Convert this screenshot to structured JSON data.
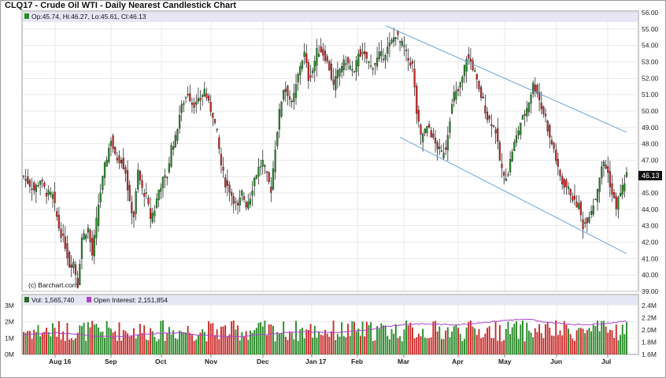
{
  "header": {
    "title": "CLQ17 - Crude Oil WTI - Daily Nearest Candlestick Chart"
  },
  "legend": {
    "ohlc": "Op:45.74, Hi:46.27, Lo:45.61, Cl:46.13",
    "vol": "Vol: 1,565,740",
    "oi": "Open Interest: 2,151,854"
  },
  "watermark": "(c) Barchart.com",
  "last_price": "46.13",
  "colors": {
    "up": "#2a8a2a",
    "down": "#cc2a2a",
    "oi": "#b040d0",
    "trend": "#5a9ad6",
    "grid": "#dcdcdc"
  },
  "chart_data": [
    {
      "type": "candlestick",
      "title": "CLQ17 - Crude Oil WTI - Daily Nearest Candlestick Chart",
      "ylim": [
        39,
        56
      ],
      "y_ticks": [
        "39.00",
        "40.00",
        "41.00",
        "42.00",
        "43.00",
        "44.00",
        "45.00",
        "46.00",
        "47.00",
        "48.00",
        "49.00",
        "50.00",
        "51.00",
        "52.00",
        "53.00",
        "54.00",
        "55.00",
        "56.00"
      ],
      "x_ticks": [
        "Aug 16",
        "Sep",
        "Oct",
        "Nov",
        "Dec",
        "Jan 17",
        "Feb",
        "Mar",
        "Apr",
        "May",
        "Jun",
        "Jul"
      ],
      "last": {
        "open": 45.74,
        "high": 46.27,
        "low": 45.61,
        "close": 46.13
      },
      "close_path": [
        [
          0,
          46.0
        ],
        [
          5,
          45.2
        ],
        [
          8,
          45.8
        ],
        [
          11,
          45.0
        ],
        [
          14,
          44.8
        ],
        [
          17,
          42.9
        ],
        [
          20,
          41.8
        ],
        [
          22,
          40.6
        ],
        [
          24,
          40.8
        ],
        [
          26,
          39.4
        ],
        [
          28,
          42.3
        ],
        [
          31,
          42.8
        ],
        [
          33,
          41.2
        ],
        [
          36,
          44.3
        ],
        [
          39,
          46.6
        ],
        [
          42,
          48.3
        ],
        [
          44,
          47.2
        ],
        [
          47,
          47.0
        ],
        [
          49,
          46.3
        ],
        [
          51,
          44.3
        ],
        [
          53,
          43.6
        ],
        [
          55,
          46.3
        ],
        [
          57,
          45.2
        ],
        [
          59,
          44.8
        ],
        [
          61,
          43.5
        ],
        [
          63,
          44.0
        ],
        [
          65,
          45.2
        ],
        [
          67,
          45.8
        ],
        [
          69,
          46.0
        ],
        [
          71,
          47.8
        ],
        [
          73,
          48.3
        ],
        [
          75,
          49.8
        ],
        [
          77,
          50.6
        ],
        [
          79,
          51.1
        ],
        [
          81,
          50.5
        ],
        [
          83,
          50.4
        ],
        [
          85,
          50.7
        ],
        [
          87,
          51.3
        ],
        [
          89,
          50.4
        ],
        [
          91,
          49.8
        ],
        [
          93,
          48.6
        ],
        [
          95,
          46.7
        ],
        [
          97,
          45.6
        ],
        [
          99,
          45.2
        ],
        [
          101,
          44.6
        ],
        [
          103,
          44.1
        ],
        [
          105,
          45.0
        ],
        [
          107,
          44.3
        ],
        [
          109,
          44.8
        ],
        [
          111,
          45.9
        ],
        [
          113,
          46.5
        ],
        [
          115,
          46.9
        ],
        [
          117,
          46.0
        ],
        [
          119,
          45.2
        ],
        [
          121,
          47.8
        ],
        [
          123,
          49.9
        ],
        [
          125,
          51.4
        ],
        [
          127,
          51.1
        ],
        [
          129,
          50.4
        ],
        [
          131,
          51.5
        ],
        [
          133,
          52.8
        ],
        [
          135,
          53.5
        ],
        [
          137,
          52.0
        ],
        [
          139,
          52.5
        ],
        [
          141,
          53.6
        ],
        [
          143,
          53.7
        ],
        [
          145,
          53.3
        ],
        [
          147,
          52.6
        ],
        [
          149,
          51.5
        ],
        [
          151,
          52.3
        ],
        [
          153,
          52.8
        ],
        [
          155,
          53.0
        ],
        [
          157,
          52.7
        ],
        [
          159,
          52.2
        ],
        [
          161,
          53.6
        ],
        [
          163,
          53.4
        ],
        [
          165,
          53.2
        ],
        [
          167,
          52.7
        ],
        [
          169,
          52.9
        ],
        [
          171,
          53.4
        ],
        [
          173,
          53.4
        ],
        [
          175,
          53.8
        ],
        [
          177,
          54.2
        ],
        [
          179,
          54.7
        ],
        [
          181,
          54.2
        ],
        [
          183,
          53.9
        ],
        [
          185,
          53.1
        ],
        [
          187,
          52.8
        ],
        [
          189,
          49.9
        ],
        [
          191,
          48.4
        ],
        [
          193,
          48.8
        ],
        [
          195,
          49.0
        ],
        [
          197,
          48.2
        ],
        [
          199,
          47.8
        ],
        [
          201,
          47.4
        ],
        [
          203,
          47.8
        ],
        [
          205,
          49.6
        ],
        [
          207,
          51.0
        ],
        [
          209,
          51.2
        ],
        [
          211,
          52.0
        ],
        [
          213,
          53.3
        ],
        [
          215,
          53.0
        ],
        [
          217,
          52.3
        ],
        [
          219,
          51.2
        ],
        [
          221,
          50.6
        ],
        [
          223,
          49.6
        ],
        [
          225,
          49.3
        ],
        [
          227,
          48.8
        ],
        [
          229,
          47.0
        ],
        [
          231,
          45.9
        ],
        [
          233,
          46.3
        ],
        [
          235,
          47.6
        ],
        [
          237,
          48.4
        ],
        [
          239,
          49.3
        ],
        [
          241,
          49.8
        ],
        [
          243,
          50.6
        ],
        [
          245,
          51.6
        ],
        [
          247,
          51.2
        ],
        [
          249,
          50.2
        ],
        [
          251,
          49.6
        ],
        [
          253,
          48.3
        ],
        [
          255,
          47.7
        ],
        [
          257,
          46.4
        ],
        [
          259,
          45.6
        ],
        [
          261,
          45.4
        ],
        [
          263,
          45.0
        ],
        [
          265,
          44.4
        ],
        [
          267,
          44.2
        ],
        [
          269,
          43.0
        ],
        [
          271,
          43.4
        ],
        [
          273,
          44.0
        ],
        [
          275,
          44.7
        ],
        [
          277,
          46.0
        ],
        [
          279,
          46.9
        ],
        [
          281,
          46.2
        ],
        [
          283,
          44.9
        ],
        [
          285,
          44.2
        ],
        [
          287,
          45.0
        ],
        [
          289,
          45.7
        ],
        [
          290,
          46.13
        ]
      ],
      "trend_lines": [
        {
          "from": [
            "Feb 17",
            55.2
          ],
          "to": [
            "Jul 13",
            48.7
          ]
        },
        {
          "from": [
            "Feb 21",
            48.4
          ],
          "to": [
            "Jul 13",
            41.3
          ]
        }
      ]
    },
    {
      "type": "bar",
      "title": "",
      "series": [
        {
          "name": "Vol",
          "last": 1565740
        },
        {
          "name": "Open Interest",
          "last": 2151854
        }
      ],
      "y_ticks_left": [
        "0M",
        "1M",
        "2M",
        "3M"
      ],
      "y_ticks_right": [
        "1.6M",
        "1.8M",
        "2.0M",
        "2.2M",
        "2.4M"
      ]
    }
  ]
}
